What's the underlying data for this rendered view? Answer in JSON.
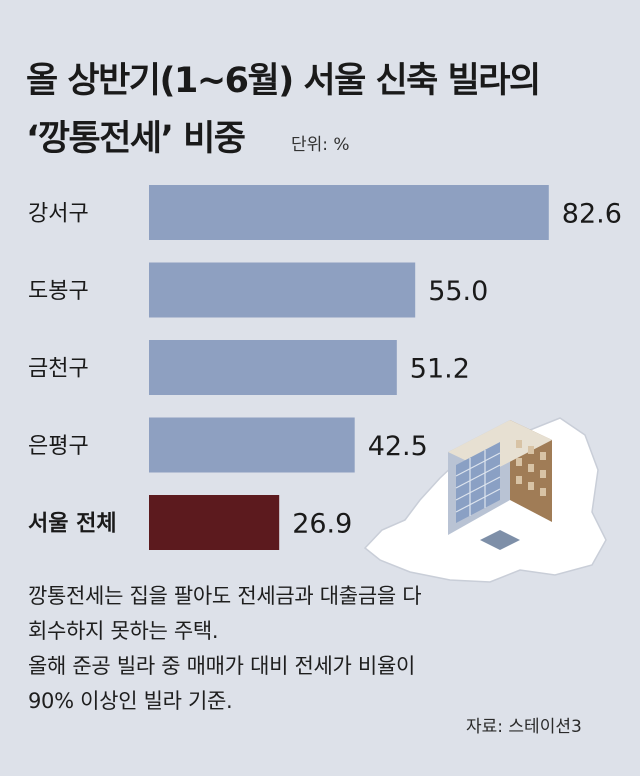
{
  "title_line1": "올 상반기(1~6월) 서울 신축 빌라의",
  "title_line2": "‘깡통전세’ 비중",
  "unit_label": "단위: %",
  "chart_data": {
    "type": "bar",
    "orientation": "horizontal",
    "categories": [
      "강서구",
      "도봉구",
      "금천구",
      "은평구",
      "서울 전체"
    ],
    "values": [
      82.6,
      55.0,
      51.2,
      42.5,
      26.9
    ],
    "value_labels": [
      "82.6",
      "55.0",
      "51.2",
      "42.5",
      "26.9"
    ],
    "colors": [
      "#8ea0c1",
      "#8ea0c1",
      "#8ea0c1",
      "#8ea0c1",
      "#5c1a1e"
    ],
    "highlight_category": "서울 전체",
    "xlim": [
      0,
      100
    ],
    "grid": false,
    "legend": "none"
  },
  "notes": [
    "깡통전세는 집을 팔아도 전세금과 대출금을 다",
    "회수하지 못하는 주택.",
    "올해 준공 빌라 중 매매가 대비 전세가 비율이",
    "90% 이상인 빌라 기준."
  ],
  "source": "자료: 스테이션3",
  "illustration": "seoul-map-with-building"
}
